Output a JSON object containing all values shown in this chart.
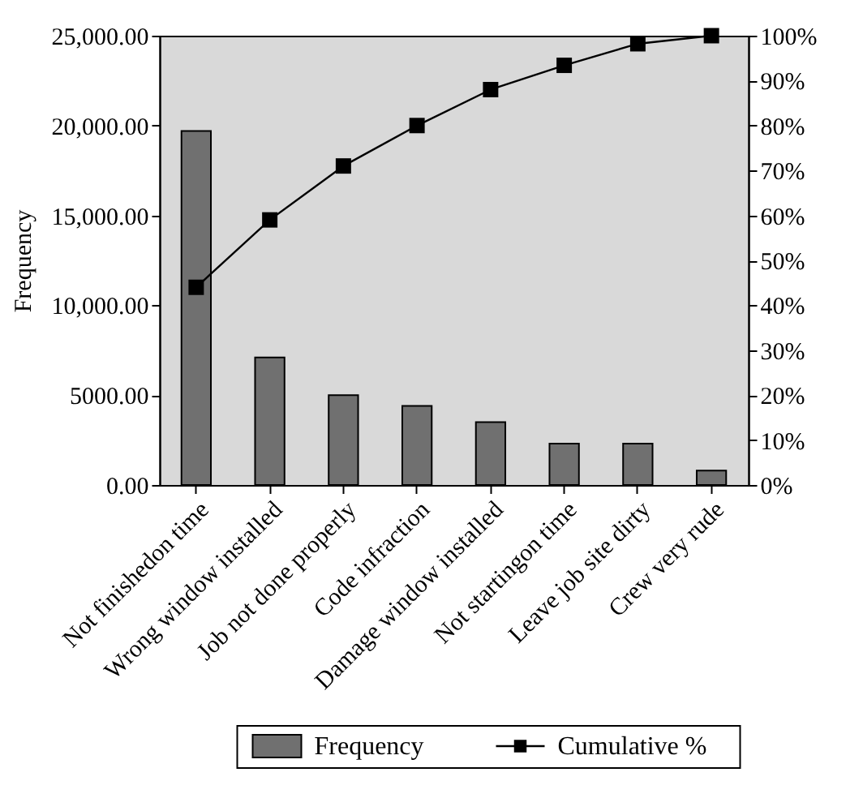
{
  "chart_data": {
    "type": "bar",
    "ylabel": "Frequency",
    "categories": [
      "Not finishedon time",
      "Wrong window installed",
      "Job not done properly",
      "Code infraction",
      "Damage window installed",
      "Not startingon time",
      "Leave job site dirty",
      "Crew very rude"
    ],
    "series": [
      {
        "name": "Frequency",
        "color": "#707070",
        "values": [
          19700,
          7100,
          5000,
          4400,
          3500,
          2300,
          2300,
          800
        ]
      },
      {
        "name": "Cumulative %",
        "type": "line",
        "axis": "y2",
        "color": "#000000",
        "marker": "square",
        "values": [
          44,
          59,
          71,
          80,
          88,
          93.4,
          98.2,
          100
        ]
      }
    ],
    "ylim": [
      0,
      25000
    ],
    "yticks": [
      {
        "value": 0,
        "label": "0.00"
      },
      {
        "value": 5000,
        "label": "5000.00"
      },
      {
        "value": 10000,
        "label": "10,000.00"
      },
      {
        "value": 15000,
        "label": "15,000.00"
      },
      {
        "value": 20000,
        "label": "20,000.00"
      },
      {
        "value": 25000,
        "label": "25,000.00"
      }
    ],
    "y2lim": [
      0,
      100
    ],
    "y2ticks": [
      {
        "value": 0,
        "label": "0%"
      },
      {
        "value": 10,
        "label": "10%"
      },
      {
        "value": 20,
        "label": "20%"
      },
      {
        "value": 30,
        "label": "30%"
      },
      {
        "value": 40,
        "label": "40%"
      },
      {
        "value": 50,
        "label": "50%"
      },
      {
        "value": 60,
        "label": "60%"
      },
      {
        "value": 70,
        "label": "70%"
      },
      {
        "value": 80,
        "label": "80%"
      },
      {
        "value": 90,
        "label": "90%"
      },
      {
        "value": 100,
        "label": "100%"
      }
    ],
    "grid": false,
    "legend": "bottom"
  }
}
